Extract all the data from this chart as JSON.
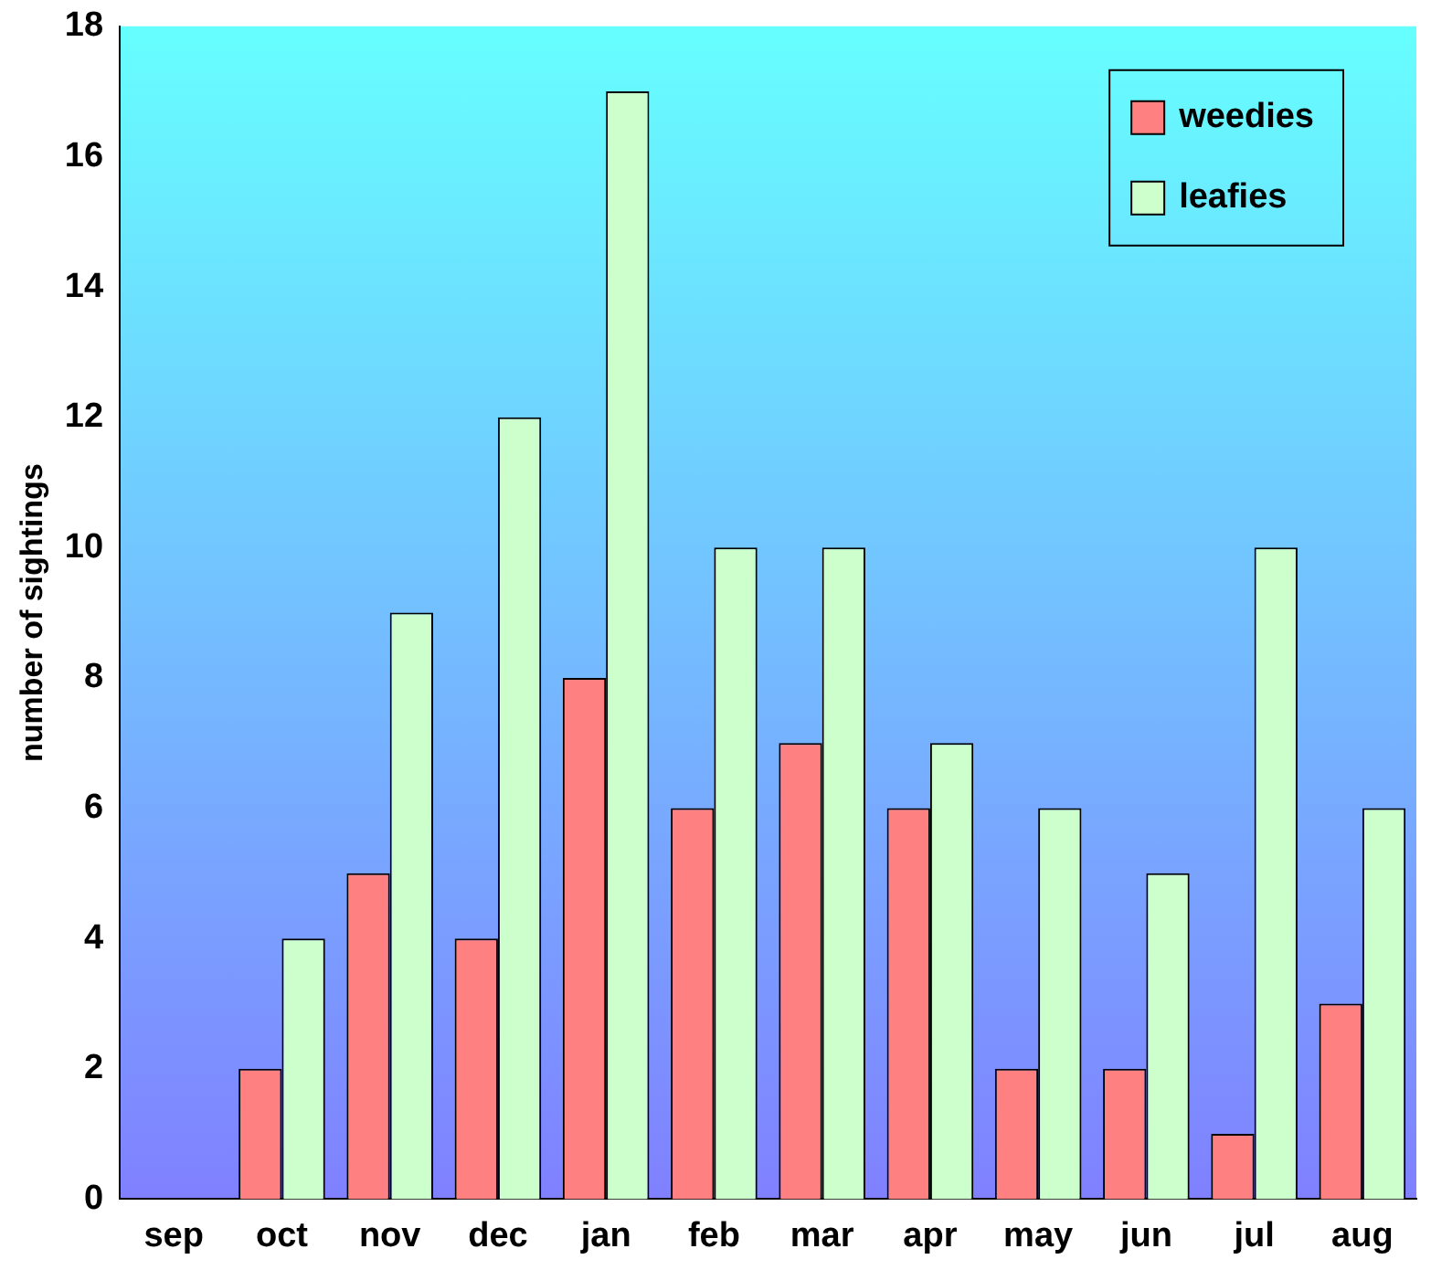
{
  "chart_data": {
    "type": "bar",
    "ylabel": "number of sightings",
    "categories": [
      "sep",
      "oct",
      "nov",
      "dec",
      "jan",
      "feb",
      "mar",
      "apr",
      "may",
      "jun",
      "jul",
      "aug"
    ],
    "series": [
      {
        "name": "weedies",
        "color": "#ff8080",
        "values": [
          0,
          2,
          5,
          4,
          8,
          6,
          7,
          6,
          2,
          2,
          1,
          3
        ]
      },
      {
        "name": "leafies",
        "color": "#ccffcc",
        "values": [
          0,
          4,
          9,
          12,
          17,
          10,
          10,
          7,
          6,
          5,
          10,
          6
        ]
      }
    ],
    "ylim": [
      0,
      18
    ],
    "yticks": [
      0,
      2,
      4,
      6,
      8,
      10,
      12,
      14,
      16,
      18
    ],
    "grid": false,
    "legend": "top right"
  }
}
